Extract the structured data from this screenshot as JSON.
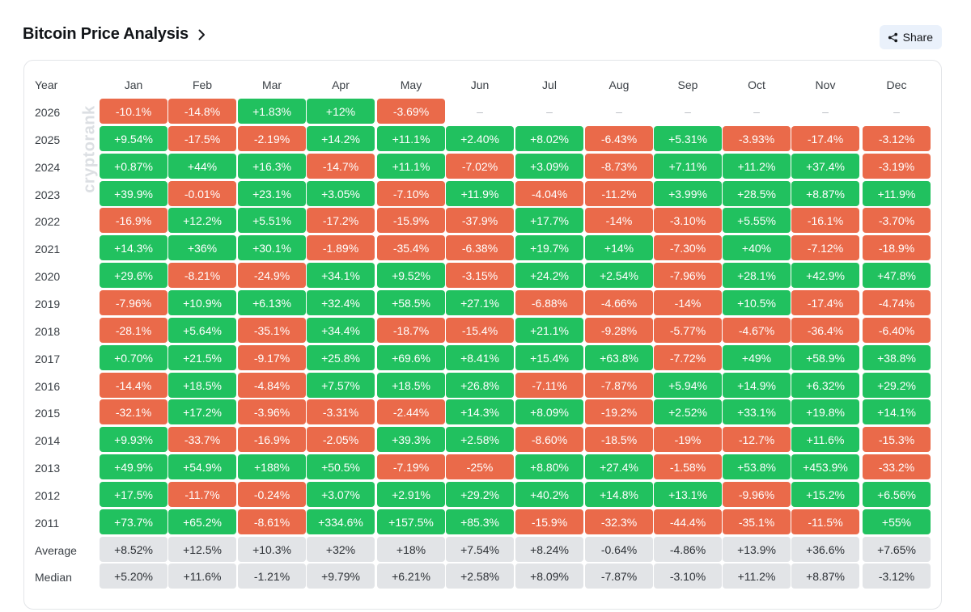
{
  "header": {
    "title": "Bitcoin Price Analysis",
    "share_label": "Share"
  },
  "watermark": "cryptorank",
  "colors": {
    "positive": "#21c15f",
    "negative": "#ea6a4a",
    "stat": "#e2e4e7"
  },
  "chart_data": {
    "type": "table",
    "title": "Bitcoin Price Analysis",
    "row_header": "Year",
    "columns": [
      "Jan",
      "Feb",
      "Mar",
      "Apr",
      "May",
      "Jun",
      "Jul",
      "Aug",
      "Sep",
      "Oct",
      "Nov",
      "Dec"
    ],
    "rows": [
      {
        "label": "2026",
        "values": [
          "-10.1%",
          "-14.8%",
          "+1.83%",
          "+12%",
          "-3.69%",
          "–",
          "–",
          "–",
          "–",
          "–",
          "–",
          "–"
        ]
      },
      {
        "label": "2025",
        "values": [
          "+9.54%",
          "-17.5%",
          "-2.19%",
          "+14.2%",
          "+11.1%",
          "+2.40%",
          "+8.02%",
          "-6.43%",
          "+5.31%",
          "-3.93%",
          "-17.4%",
          "-3.12%"
        ]
      },
      {
        "label": "2024",
        "values": [
          "+0.87%",
          "+44%",
          "+16.3%",
          "-14.7%",
          "+11.1%",
          "-7.02%",
          "+3.09%",
          "-8.73%",
          "+7.11%",
          "+11.2%",
          "+37.4%",
          "-3.19%"
        ]
      },
      {
        "label": "2023",
        "values": [
          "+39.9%",
          "-0.01%",
          "+23.1%",
          "+3.05%",
          "-7.10%",
          "+11.9%",
          "-4.04%",
          "-11.2%",
          "+3.99%",
          "+28.5%",
          "+8.87%",
          "+11.9%"
        ]
      },
      {
        "label": "2022",
        "values": [
          "-16.9%",
          "+12.2%",
          "+5.51%",
          "-17.2%",
          "-15.9%",
          "-37.9%",
          "+17.7%",
          "-14%",
          "-3.10%",
          "+5.55%",
          "-16.1%",
          "-3.70%"
        ]
      },
      {
        "label": "2021",
        "values": [
          "+14.3%",
          "+36%",
          "+30.1%",
          "-1.89%",
          "-35.4%",
          "-6.38%",
          "+19.7%",
          "+14%",
          "-7.30%",
          "+40%",
          "-7.12%",
          "-18.9%"
        ]
      },
      {
        "label": "2020",
        "values": [
          "+29.6%",
          "-8.21%",
          "-24.9%",
          "+34.1%",
          "+9.52%",
          "-3.15%",
          "+24.2%",
          "+2.54%",
          "-7.96%",
          "+28.1%",
          "+42.9%",
          "+47.8%"
        ]
      },
      {
        "label": "2019",
        "values": [
          "-7.96%",
          "+10.9%",
          "+6.13%",
          "+32.4%",
          "+58.5%",
          "+27.1%",
          "-6.88%",
          "-4.66%",
          "-14%",
          "+10.5%",
          "-17.4%",
          "-4.74%"
        ]
      },
      {
        "label": "2018",
        "values": [
          "-28.1%",
          "+5.64%",
          "-35.1%",
          "+34.4%",
          "-18.7%",
          "-15.4%",
          "+21.1%",
          "-9.28%",
          "-5.77%",
          "-4.67%",
          "-36.4%",
          "-6.40%"
        ]
      },
      {
        "label": "2017",
        "values": [
          "+0.70%",
          "+21.5%",
          "-9.17%",
          "+25.8%",
          "+69.6%",
          "+8.41%",
          "+15.4%",
          "+63.8%",
          "-7.72%",
          "+49%",
          "+58.9%",
          "+38.8%"
        ]
      },
      {
        "label": "2016",
        "values": [
          "-14.4%",
          "+18.5%",
          "-4.84%",
          "+7.57%",
          "+18.5%",
          "+26.8%",
          "-7.11%",
          "-7.87%",
          "+5.94%",
          "+14.9%",
          "+6.32%",
          "+29.2%"
        ]
      },
      {
        "label": "2015",
        "values": [
          "-32.1%",
          "+17.2%",
          "-3.96%",
          "-3.31%",
          "-2.44%",
          "+14.3%",
          "+8.09%",
          "-19.2%",
          "+2.52%",
          "+33.1%",
          "+19.8%",
          "+14.1%"
        ]
      },
      {
        "label": "2014",
        "values": [
          "+9.93%",
          "-33.7%",
          "-16.9%",
          "-2.05%",
          "+39.3%",
          "+2.58%",
          "-8.60%",
          "-18.5%",
          "-19%",
          "-12.7%",
          "+11.6%",
          "-15.3%"
        ]
      },
      {
        "label": "2013",
        "values": [
          "+49.9%",
          "+54.9%",
          "+188%",
          "+50.5%",
          "-7.19%",
          "-25%",
          "+8.80%",
          "+27.4%",
          "-1.58%",
          "+53.8%",
          "+453.9%",
          "-33.2%"
        ]
      },
      {
        "label": "2012",
        "values": [
          "+17.5%",
          "-11.7%",
          "-0.24%",
          "+3.07%",
          "+2.91%",
          "+29.2%",
          "+40.2%",
          "+14.8%",
          "+13.1%",
          "-9.96%",
          "+15.2%",
          "+6.56%"
        ]
      },
      {
        "label": "2011",
        "values": [
          "+73.7%",
          "+65.2%",
          "-8.61%",
          "+334.6%",
          "+157.5%",
          "+85.3%",
          "-15.9%",
          "-32.3%",
          "-44.4%",
          "-35.1%",
          "-11.5%",
          "+55%"
        ]
      }
    ],
    "summary_rows": [
      {
        "label": "Average",
        "values": [
          "+8.52%",
          "+12.5%",
          "+10.3%",
          "+32%",
          "+18%",
          "+7.54%",
          "+8.24%",
          "-0.64%",
          "-4.86%",
          "+13.9%",
          "+36.6%",
          "+7.65%"
        ]
      },
      {
        "label": "Median",
        "values": [
          "+5.20%",
          "+11.6%",
          "-1.21%",
          "+9.79%",
          "+6.21%",
          "+2.58%",
          "+8.09%",
          "-7.87%",
          "-3.10%",
          "+11.2%",
          "+8.87%",
          "-3.12%"
        ]
      }
    ]
  }
}
